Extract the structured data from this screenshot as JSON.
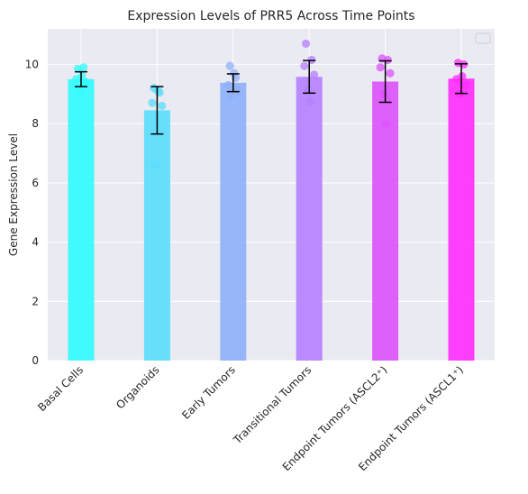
{
  "chart_data": {
    "type": "bar",
    "title": "Expression Levels of PRR5 Across Time Points",
    "xlabel": "",
    "ylabel": "Gene Expression Level",
    "ylim": [
      0,
      11.2
    ],
    "yticks": [
      0,
      2,
      4,
      6,
      8,
      10
    ],
    "grid": true,
    "legend": "top-right",
    "categories": [
      "Basal Cells",
      "Organoids",
      "Early Tumors",
      "Transitional Tumors",
      "Endpoint Tumors (ASCL2⁺)",
      "Endpoint Tumors (ASCL1⁺)"
    ],
    "values": [
      9.5,
      8.45,
      9.38,
      9.58,
      9.42,
      9.52
    ],
    "error": [
      0.25,
      0.8,
      0.3,
      0.55,
      0.7,
      0.5
    ],
    "points": [
      [
        9.85,
        9.9,
        9.5,
        9.4,
        9.1,
        9.6
      ],
      [
        9.2,
        9.05,
        8.7,
        8.6,
        6.6,
        9.1
      ],
      [
        9.95,
        9.55,
        9.3,
        9.1,
        8.95,
        9.7
      ],
      [
        10.7,
        10.15,
        9.95,
        9.65,
        9.15,
        8.75
      ],
      [
        10.2,
        10.15,
        9.9,
        9.7,
        9.0,
        8.0
      ],
      [
        10.05,
        10.0,
        9.5,
        9.3,
        9.0,
        9.6
      ]
    ],
    "colors": [
      "#2ffcff",
      "#59ddfc",
      "#8db0fa",
      "#b57fff",
      "#dd51fd",
      "#ff2bfd"
    ]
  }
}
